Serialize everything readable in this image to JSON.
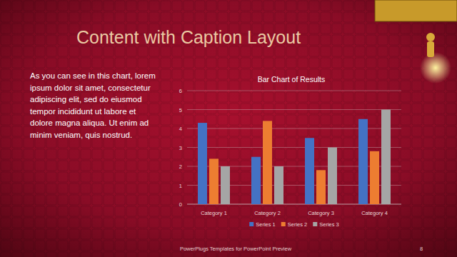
{
  "slide": {
    "title": "Content with Caption Layout",
    "caption": [
      "As you can see in this chart, lorem",
      "ipsum dolor sit amet, consectetur",
      "adipiscing elit, sed do eiusmod",
      "tempor incididunt ut labore et",
      "dolore magna aliqua. Ut enim ad",
      "minim veniam, quis nostrud."
    ],
    "footer": "PowerPlugs Templates for PowerPoint Preview",
    "page": 8
  },
  "chart_data": {
    "type": "bar",
    "title": "Bar Chart of Results",
    "categories": [
      "Category 1",
      "Category 2",
      "Category 3",
      "Category 4"
    ],
    "series": [
      {
        "name": "Series 1",
        "color": "#4472c4",
        "values": [
          4.3,
          2.5,
          3.5,
          4.5
        ]
      },
      {
        "name": "Series 2",
        "color": "#ed7d31",
        "values": [
          2.4,
          4.4,
          1.8,
          2.8
        ]
      },
      {
        "name": "Series 3",
        "color": "#a5a5a5",
        "values": [
          2,
          2,
          3,
          5
        ]
      }
    ],
    "ylim": [
      0,
      6
    ],
    "yticks": [
      0,
      1,
      2,
      3,
      4,
      5,
      6
    ],
    "grid": true,
    "legend": "bottom"
  }
}
